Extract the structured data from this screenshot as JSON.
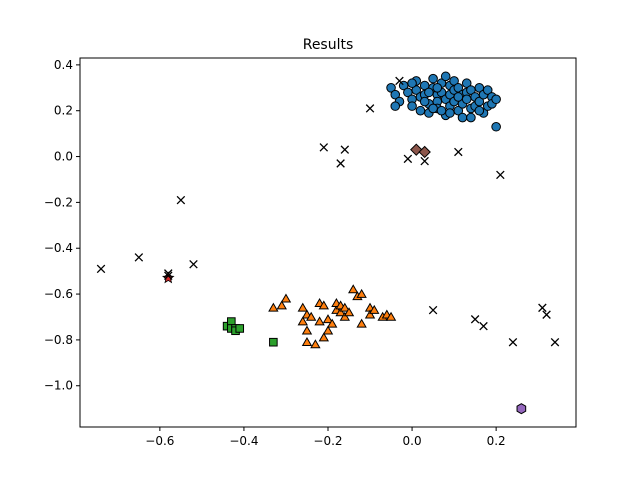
{
  "chart_data": {
    "type": "scatter",
    "title": "Results",
    "xlabel": "",
    "ylabel": "",
    "xlim": [
      -0.79,
      0.39
    ],
    "ylim": [
      -1.18,
      0.43
    ],
    "xticks": [
      -0.6,
      -0.4,
      -0.2,
      0.0,
      0.2
    ],
    "xtick_labels": [
      "−0.6",
      "−0.4",
      "−0.2",
      "0.0",
      "0.2"
    ],
    "yticks": [
      -1.0,
      -0.8,
      -0.6,
      -0.4,
      -0.2,
      0.0,
      0.2,
      0.4
    ],
    "ytick_labels": [
      "−1.0",
      "−0.8",
      "−0.6",
      "−0.4",
      "−0.2",
      "0.0",
      "0.2",
      "0.4"
    ],
    "grid": false,
    "legend": "none",
    "series": [
      {
        "marker": "circle",
        "color": "#1f77b4",
        "points": [
          [
            -0.05,
            0.3
          ],
          [
            -0.04,
            0.27
          ],
          [
            -0.03,
            0.24
          ],
          [
            -0.02,
            0.31
          ],
          [
            -0.01,
            0.28
          ],
          [
            0.0,
            0.25
          ],
          [
            0.0,
            0.22
          ],
          [
            0.01,
            0.33
          ],
          [
            0.01,
            0.29
          ],
          [
            0.02,
            0.26
          ],
          [
            0.02,
            0.2
          ],
          [
            0.03,
            0.31
          ],
          [
            0.03,
            0.27
          ],
          [
            0.04,
            0.23
          ],
          [
            0.04,
            0.19
          ],
          [
            0.05,
            0.34
          ],
          [
            0.05,
            0.3
          ],
          [
            0.06,
            0.27
          ],
          [
            0.06,
            0.24
          ],
          [
            0.06,
            0.21
          ],
          [
            0.07,
            0.32
          ],
          [
            0.07,
            0.28
          ],
          [
            0.08,
            0.35
          ],
          [
            0.08,
            0.25
          ],
          [
            0.08,
            0.18
          ],
          [
            0.09,
            0.31
          ],
          [
            0.09,
            0.27
          ],
          [
            0.09,
            0.22
          ],
          [
            0.1,
            0.33
          ],
          [
            0.1,
            0.29
          ],
          [
            0.1,
            0.24
          ],
          [
            0.11,
            0.2
          ],
          [
            0.11,
            0.3
          ],
          [
            0.12,
            0.27
          ],
          [
            0.12,
            0.23
          ],
          [
            0.12,
            0.17
          ],
          [
            0.13,
            0.32
          ],
          [
            0.13,
            0.28
          ],
          [
            0.13,
            0.25
          ],
          [
            0.14,
            0.21
          ],
          [
            0.14,
            0.29
          ],
          [
            0.15,
            0.26
          ],
          [
            0.15,
            0.22
          ],
          [
            0.16,
            0.3
          ],
          [
            0.16,
            0.24
          ],
          [
            0.17,
            0.27
          ],
          [
            0.17,
            0.19
          ],
          [
            0.18,
            0.29
          ],
          [
            0.18,
            0.22
          ],
          [
            0.19,
            0.26
          ],
          [
            0.19,
            0.23
          ],
          [
            0.2,
            0.25
          ],
          [
            0.2,
            0.13
          ],
          [
            -0.04,
            0.22
          ],
          [
            0.0,
            0.32
          ],
          [
            0.03,
            0.24
          ],
          [
            0.05,
            0.21
          ],
          [
            0.07,
            0.2
          ],
          [
            0.09,
            0.19
          ],
          [
            0.11,
            0.26
          ],
          [
            0.14,
            0.17
          ],
          [
            0.16,
            0.2
          ],
          [
            0.06,
            0.3
          ],
          [
            0.04,
            0.28
          ]
        ]
      },
      {
        "marker": "triangle",
        "color": "#ff7f0e",
        "points": [
          [
            -0.33,
            -0.66
          ],
          [
            -0.31,
            -0.65
          ],
          [
            -0.3,
            -0.62
          ],
          [
            -0.26,
            -0.66
          ],
          [
            -0.26,
            -0.72
          ],
          [
            -0.25,
            -0.69
          ],
          [
            -0.25,
            -0.76
          ],
          [
            -0.25,
            -0.81
          ],
          [
            -0.24,
            -0.7
          ],
          [
            -0.23,
            -0.82
          ],
          [
            -0.22,
            -0.64
          ],
          [
            -0.22,
            -0.72
          ],
          [
            -0.21,
            -0.65
          ],
          [
            -0.21,
            -0.79
          ],
          [
            -0.2,
            -0.71
          ],
          [
            -0.2,
            -0.76
          ],
          [
            -0.19,
            -0.73
          ],
          [
            -0.18,
            -0.67
          ],
          [
            -0.18,
            -0.64
          ],
          [
            -0.17,
            -0.68
          ],
          [
            -0.17,
            -0.65
          ],
          [
            -0.16,
            -0.7
          ],
          [
            -0.16,
            -0.66
          ],
          [
            -0.15,
            -0.68
          ],
          [
            -0.14,
            -0.58
          ],
          [
            -0.13,
            -0.61
          ],
          [
            -0.12,
            -0.6
          ],
          [
            -0.12,
            -0.73
          ],
          [
            -0.1,
            -0.66
          ],
          [
            -0.1,
            -0.69
          ],
          [
            -0.09,
            -0.67
          ],
          [
            -0.07,
            -0.7
          ],
          [
            -0.06,
            -0.69
          ],
          [
            -0.05,
            -0.7
          ]
        ]
      },
      {
        "marker": "square",
        "color": "#2ca02c",
        "points": [
          [
            -0.44,
            -0.74
          ],
          [
            -0.43,
            -0.72
          ],
          [
            -0.43,
            -0.75
          ],
          [
            -0.42,
            -0.75
          ],
          [
            -0.42,
            -0.76
          ],
          [
            -0.41,
            -0.75
          ],
          [
            -0.33,
            -0.81
          ]
        ]
      },
      {
        "marker": "diamond",
        "color": "#8c564b",
        "points": [
          [
            0.01,
            0.03
          ],
          [
            0.03,
            0.02
          ]
        ]
      },
      {
        "marker": "star",
        "color": "#d62728",
        "points": [
          [
            -0.58,
            -0.53
          ]
        ]
      },
      {
        "marker": "hexagon",
        "color": "#9467bd",
        "points": [
          [
            0.26,
            -1.1
          ]
        ]
      },
      {
        "marker": "x",
        "color": "#000000",
        "points": [
          [
            -0.74,
            -0.49
          ],
          [
            -0.65,
            -0.44
          ],
          [
            -0.58,
            -0.51
          ],
          [
            -0.58,
            -0.52
          ],
          [
            -0.55,
            -0.19
          ],
          [
            -0.52,
            -0.47
          ],
          [
            -0.21,
            0.04
          ],
          [
            -0.17,
            -0.03
          ],
          [
            -0.16,
            0.03
          ],
          [
            -0.1,
            0.21
          ],
          [
            -0.03,
            0.33
          ],
          [
            -0.01,
            -0.01
          ],
          [
            0.03,
            -0.02
          ],
          [
            0.05,
            -0.67
          ],
          [
            0.11,
            0.02
          ],
          [
            0.15,
            -0.71
          ],
          [
            0.17,
            -0.74
          ],
          [
            0.21,
            -0.08
          ],
          [
            0.24,
            -0.81
          ],
          [
            0.31,
            -0.66
          ],
          [
            0.32,
            -0.69
          ],
          [
            0.34,
            -0.81
          ]
        ]
      }
    ]
  }
}
